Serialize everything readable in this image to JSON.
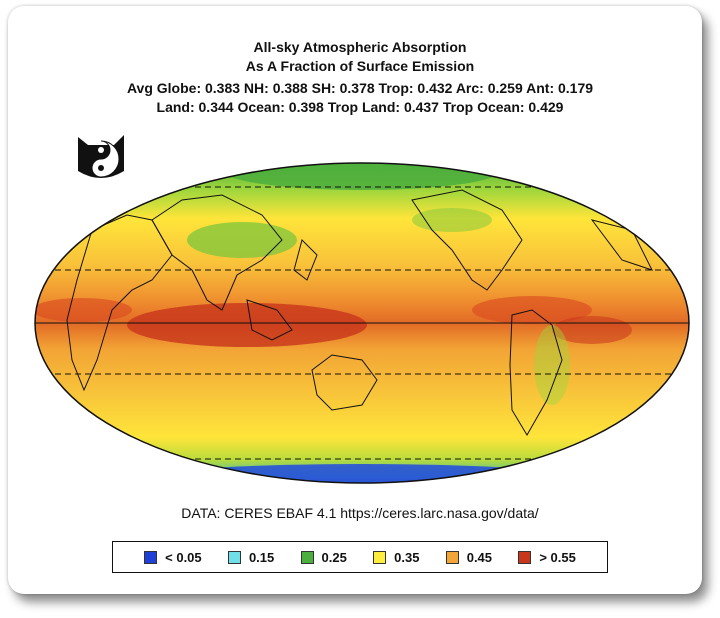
{
  "title": {
    "line1": "All-sky Atmospheric Absorption",
    "line2": "As A Fraction of Surface Emission",
    "line3": "Avg Globe: 0.383  NH: 0.388  SH: 0.378  Trop: 0.432  Arc: 0.259  Ant: 0.179",
    "line4": "Land: 0.344  Ocean: 0.398  Trop Land: 0.437  Trop Ocean: 0.429"
  },
  "source": "DATA: CERES EBAF 4.1 https://ceres.larc.nasa.gov/data/",
  "legend": [
    {
      "label": "< 0.05",
      "color": "#1f3fd6"
    },
    {
      "label": "0.15",
      "color": "#6fe0e8"
    },
    {
      "label": "0.25",
      "color": "#4cae3c"
    },
    {
      "label": "0.35",
      "color": "#ffee3d"
    },
    {
      "label": "0.45",
      "color": "#f4a537"
    },
    {
      "label": "> 0.55",
      "color": "#c8361c"
    }
  ],
  "map": {
    "projection": "Mollweide (Pacific-centered)",
    "reference_lines": [
      "Equator",
      "Tropics (±23.5°)",
      "Polar circles (±66.5°)"
    ]
  }
}
